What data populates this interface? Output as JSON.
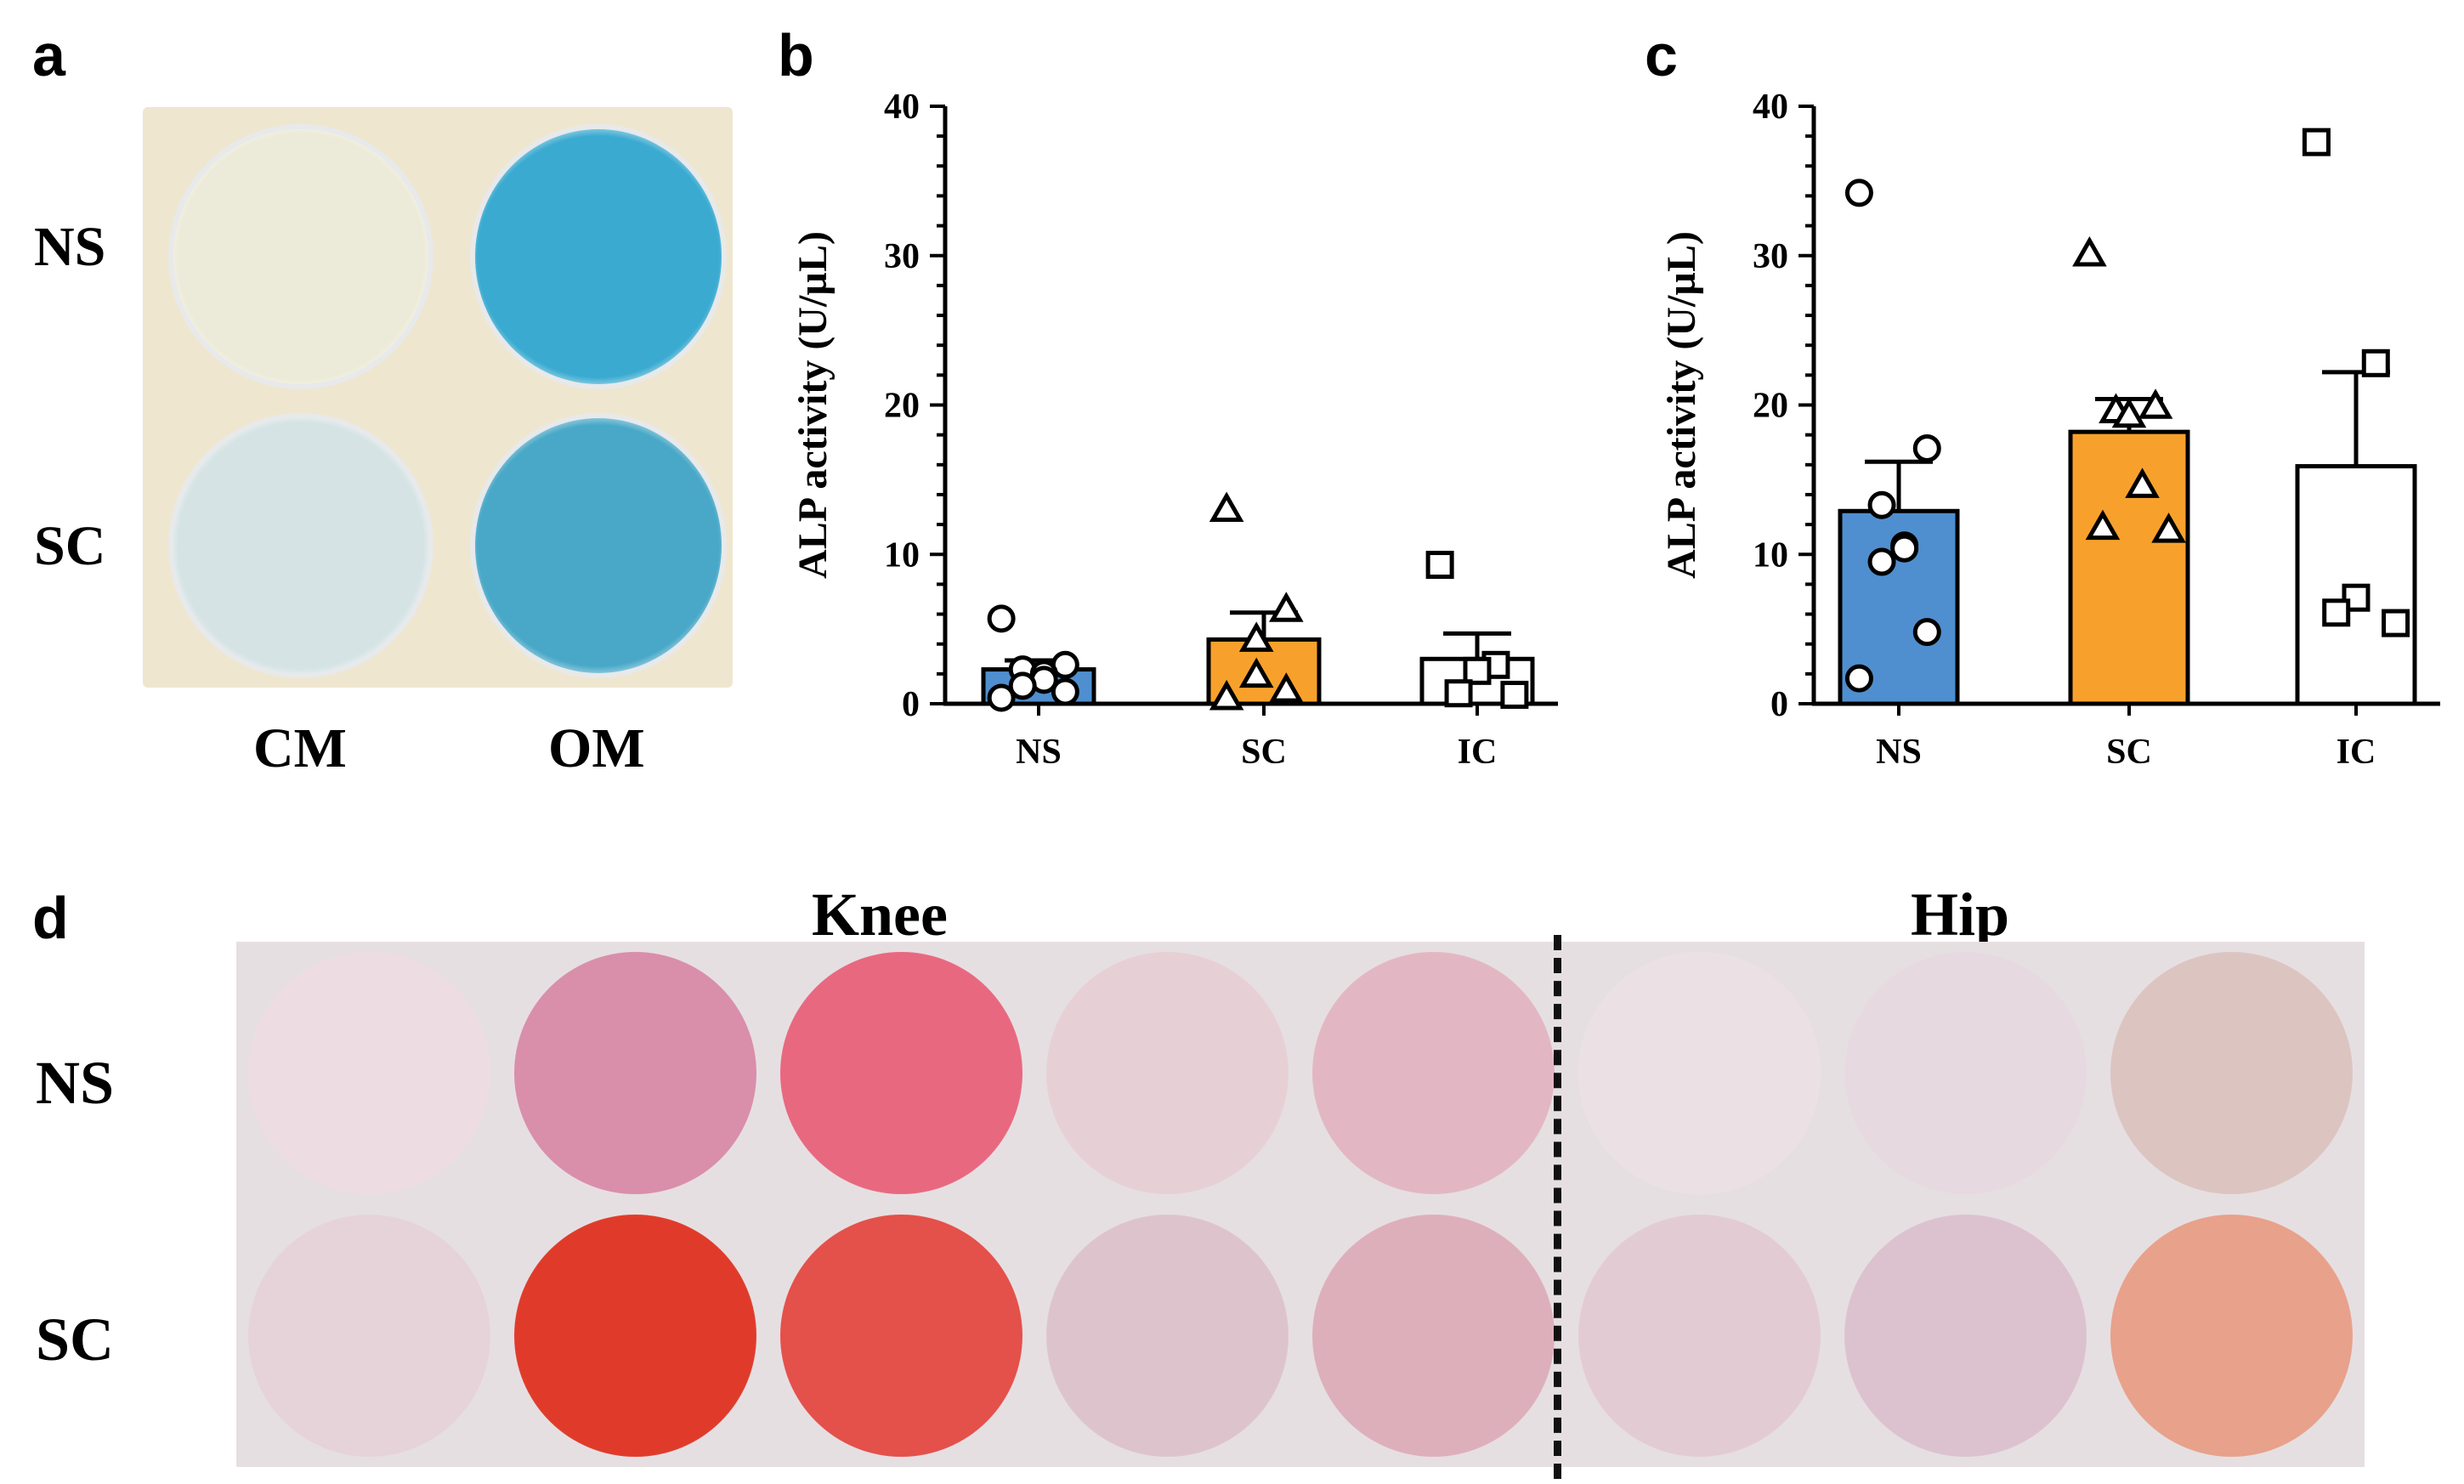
{
  "panels": {
    "a": {
      "letter": "a",
      "row_labels": [
        "NS",
        "SC"
      ],
      "col_labels": [
        "CM",
        "OM"
      ],
      "stain_color": "#2aa0c8"
    },
    "b": {
      "letter": "b"
    },
    "c": {
      "letter": "c"
    },
    "d": {
      "letter": "d",
      "group_labels": [
        "Knee",
        "Hip"
      ],
      "row_labels": [
        "NS",
        "SC"
      ],
      "stain_color": "#e0303f"
    }
  },
  "chart_data": [
    {
      "panel": "b",
      "type": "bar",
      "ylabel": "ALP activity (U/µL)",
      "ylim": [
        0,
        40
      ],
      "yticks": [
        0,
        10,
        20,
        30,
        40
      ],
      "categories": [
        "NS",
        "SC",
        "IC"
      ],
      "bar_colors": [
        "#4f8fcf",
        "#f7a12c",
        "#ffffff"
      ],
      "markers": [
        "circle",
        "triangle",
        "square"
      ],
      "means": [
        2.3,
        4.3,
        3.0
      ],
      "sem": [
        0.6,
        1.8,
        1.7
      ],
      "points": [
        [
          5.7,
          2.6,
          2.3,
          2.0,
          1.6,
          1.2,
          0.8,
          0.4
        ],
        [
          13.0,
          6.3,
          4.3,
          1.9,
          0.9,
          0.4
        ],
        [
          9.3,
          2.6,
          2.2,
          0.7,
          0.6
        ]
      ]
    },
    {
      "panel": "c",
      "type": "bar",
      "ylabel": "ALP activity (U/µL)",
      "ylim": [
        0,
        40
      ],
      "yticks": [
        0,
        10,
        20,
        30,
        40
      ],
      "categories": [
        "NS",
        "SC",
        "IC"
      ],
      "bar_colors": [
        "#4f8fcf",
        "#f7a12c",
        "#ffffff"
      ],
      "markers": [
        "circle",
        "triangle",
        "square"
      ],
      "means": [
        12.9,
        18.2,
        15.9
      ],
      "sem": [
        3.3,
        2.2,
        6.3
      ],
      "points": [
        [
          34.2,
          17.1,
          13.3,
          10.6,
          10.4,
          9.5,
          4.8,
          1.7
        ],
        [
          30.1,
          19.9,
          19.6,
          19.3,
          14.6,
          11.8,
          11.6
        ],
        [
          37.6,
          22.8,
          7.1,
          6.1,
          5.4
        ]
      ]
    }
  ],
  "well_colors_d": [
    [
      "#eddce1",
      "#d98eaa",
      "#e86880",
      "#e6d0d6",
      "#e2b7c3",
      "#ebe1e5",
      "#e7d9e0",
      "#dcc4c0"
    ],
    [
      "#e6d3da",
      "#e03b2a",
      "#e4504a",
      "#ddc4cc",
      "#ddafbb",
      "#e3cbd3",
      "#dcc2cf",
      "#e8a18a"
    ]
  ],
  "well_colors_a": [
    [
      "#ecead8",
      "#3aaad0"
    ],
    [
      "#d5e3e4",
      "#49a8c8"
    ]
  ]
}
